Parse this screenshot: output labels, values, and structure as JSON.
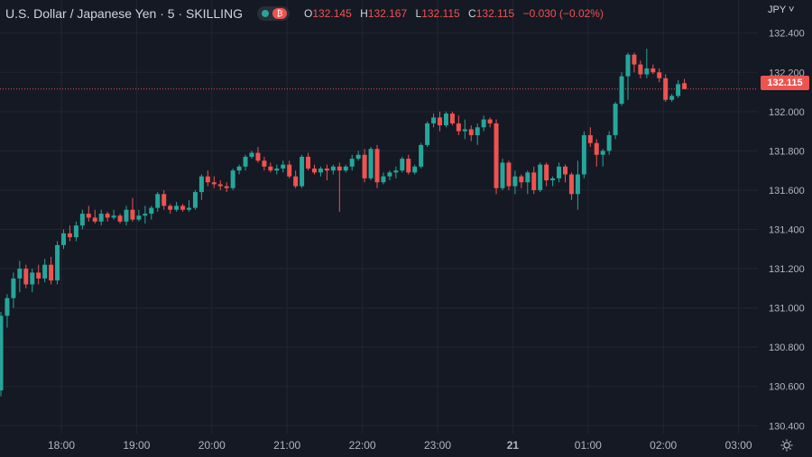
{
  "header": {
    "title": "U.S. Dollar / Japanese Yen · 5 · SKILLING",
    "open_label": "O",
    "open": "132.145",
    "high_label": "H",
    "high": "132.167",
    "low_label": "L",
    "low": "132.115",
    "close_label": "C",
    "close": "132.115",
    "change": "−0.030 (−0.02%)",
    "toggle_icon": "chart-toggle-icon"
  },
  "price_axis": {
    "currency": "JPY ˅",
    "last_price": "132.115"
  },
  "colors": {
    "up": "#26a69a",
    "down": "#ef5350",
    "background": "#151924",
    "grid": "#232632",
    "text": "#b2b5be"
  },
  "chart_data": {
    "type": "candlestick",
    "y_ticks": [
      "130.400",
      "130.600",
      "130.800",
      "131.000",
      "131.200",
      "131.400",
      "131.600",
      "131.800",
      "132.000",
      "132.200",
      "132.400"
    ],
    "x_ticks": [
      {
        "label": "18:00",
        "t": "17:55"
      },
      {
        "label": "19:00",
        "t": "18:55"
      },
      {
        "label": "20:00",
        "t": "19:55"
      },
      {
        "label": "21:00",
        "t": "20:55"
      },
      {
        "label": "22:00",
        "t": "21:55"
      },
      {
        "label": "23:00",
        "t": "22:55"
      },
      {
        "label": "21",
        "t": "23:55"
      },
      {
        "label": "01:00",
        "t": "00:55"
      },
      {
        "label": "02:00",
        "t": "01:55"
      },
      {
        "label": "03:00",
        "t": "02:55"
      }
    ],
    "ylim": [
      130.36,
      132.44
    ],
    "last_price": 132.115,
    "candles": [
      [
        130.58,
        130.98,
        130.55,
        130.96
      ],
      [
        130.96,
        131.07,
        130.9,
        131.05
      ],
      [
        131.05,
        131.18,
        131.0,
        131.15
      ],
      [
        131.15,
        131.24,
        131.08,
        131.2
      ],
      [
        131.2,
        131.22,
        131.1,
        131.12
      ],
      [
        131.12,
        131.2,
        131.08,
        131.18
      ],
      [
        131.18,
        131.22,
        131.12,
        131.15
      ],
      [
        131.15,
        131.25,
        131.13,
        131.22
      ],
      [
        131.22,
        131.26,
        131.12,
        131.14
      ],
      [
        131.14,
        131.34,
        131.12,
        131.32
      ],
      [
        131.32,
        131.4,
        131.3,
        131.38
      ],
      [
        131.38,
        131.42,
        131.34,
        131.36
      ],
      [
        131.36,
        131.44,
        131.34,
        131.42
      ],
      [
        131.42,
        131.5,
        131.4,
        131.48
      ],
      [
        131.48,
        131.52,
        131.44,
        131.46
      ],
      [
        131.46,
        131.5,
        131.43,
        131.44
      ],
      [
        131.44,
        131.5,
        131.42,
        131.48
      ],
      [
        131.48,
        131.49,
        131.44,
        131.46
      ],
      [
        131.46,
        131.5,
        131.45,
        131.47
      ],
      [
        131.47,
        131.48,
        131.43,
        131.44
      ],
      [
        131.44,
        131.52,
        131.42,
        131.5
      ],
      [
        131.5,
        131.56,
        131.44,
        131.45
      ],
      [
        131.45,
        131.5,
        131.44,
        131.47
      ],
      [
        131.47,
        131.52,
        131.43,
        131.48
      ],
      [
        131.48,
        131.52,
        131.45,
        131.51
      ],
      [
        131.51,
        131.59,
        131.49,
        131.58
      ],
      [
        131.58,
        131.6,
        131.5,
        131.52
      ],
      [
        131.52,
        131.53,
        131.48,
        131.5
      ],
      [
        131.5,
        131.54,
        131.49,
        131.52
      ],
      [
        131.52,
        131.53,
        131.49,
        131.5
      ],
      [
        131.5,
        131.55,
        131.49,
        131.51
      ],
      [
        131.51,
        131.6,
        131.5,
        131.59
      ],
      [
        131.59,
        131.68,
        131.55,
        131.67
      ],
      [
        131.67,
        131.7,
        131.62,
        131.64
      ],
      [
        131.64,
        131.67,
        131.61,
        131.63
      ],
      [
        131.63,
        131.65,
        131.6,
        131.62
      ],
      [
        131.62,
        131.64,
        131.59,
        131.61
      ],
      [
        131.61,
        131.71,
        131.6,
        131.7
      ],
      [
        131.7,
        131.73,
        131.68,
        131.72
      ],
      [
        131.72,
        131.78,
        131.7,
        131.77
      ],
      [
        131.77,
        131.8,
        131.76,
        131.79
      ],
      [
        131.79,
        131.82,
        131.74,
        131.75
      ],
      [
        131.75,
        131.77,
        131.7,
        131.72
      ],
      [
        131.72,
        131.74,
        131.69,
        131.7
      ],
      [
        131.7,
        131.73,
        131.68,
        131.71
      ],
      [
        131.71,
        131.75,
        131.69,
        131.73
      ],
      [
        131.73,
        131.75,
        131.66,
        131.67
      ],
      [
        131.67,
        131.7,
        131.61,
        131.62
      ],
      [
        131.62,
        131.78,
        131.61,
        131.77
      ],
      [
        131.77,
        131.79,
        131.7,
        131.71
      ],
      [
        131.71,
        131.73,
        131.68,
        131.69
      ],
      [
        131.69,
        131.72,
        131.67,
        131.71
      ],
      [
        131.71,
        131.73,
        131.65,
        131.7
      ],
      [
        131.7,
        131.73,
        131.68,
        131.72
      ],
      [
        131.72,
        131.74,
        131.49,
        131.7
      ],
      [
        131.7,
        131.73,
        131.69,
        131.72
      ],
      [
        131.72,
        131.78,
        131.7,
        131.76
      ],
      [
        131.76,
        131.8,
        131.75,
        131.78
      ],
      [
        131.78,
        131.81,
        131.64,
        131.66
      ],
      [
        131.66,
        131.82,
        131.65,
        131.81
      ],
      [
        131.81,
        131.83,
        131.61,
        131.64
      ],
      [
        131.64,
        131.69,
        131.63,
        131.67
      ],
      [
        131.67,
        131.7,
        131.65,
        131.69
      ],
      [
        131.69,
        131.72,
        131.66,
        131.7
      ],
      [
        131.7,
        131.77,
        131.69,
        131.76
      ],
      [
        131.76,
        131.78,
        131.68,
        131.69
      ],
      [
        131.69,
        131.73,
        131.68,
        131.72
      ],
      [
        131.72,
        131.84,
        131.71,
        131.83
      ],
      [
        131.83,
        131.95,
        131.82,
        131.94
      ],
      [
        131.94,
        131.99,
        131.92,
        131.97
      ],
      [
        131.97,
        132.0,
        131.9,
        131.93
      ],
      [
        131.93,
        132.0,
        131.92,
        131.99
      ],
      [
        131.99,
        132.0,
        131.93,
        131.94
      ],
      [
        131.94,
        131.98,
        131.88,
        131.9
      ],
      [
        131.9,
        131.96,
        131.86,
        131.91
      ],
      [
        131.91,
        131.93,
        131.85,
        131.88
      ],
      [
        131.88,
        131.94,
        131.83,
        131.92
      ],
      [
        131.92,
        131.98,
        131.9,
        131.96
      ],
      [
        131.96,
        131.97,
        131.92,
        131.94
      ],
      [
        131.94,
        131.96,
        131.58,
        131.61
      ],
      [
        131.61,
        131.76,
        131.6,
        131.74
      ],
      [
        131.74,
        131.75,
        131.6,
        131.62
      ],
      [
        131.62,
        131.7,
        131.58,
        131.67
      ],
      [
        131.67,
        131.68,
        131.61,
        131.64
      ],
      [
        131.64,
        131.7,
        131.58,
        131.69
      ],
      [
        131.69,
        131.72,
        131.58,
        131.6
      ],
      [
        131.6,
        131.74,
        131.59,
        131.73
      ],
      [
        131.73,
        131.74,
        131.62,
        131.65
      ],
      [
        131.65,
        131.67,
        131.62,
        131.66
      ],
      [
        131.66,
        131.74,
        131.64,
        131.72
      ],
      [
        131.72,
        131.73,
        131.64,
        131.68
      ],
      [
        131.68,
        131.69,
        131.55,
        131.58
      ],
      [
        131.58,
        131.75,
        131.5,
        131.68
      ],
      [
        131.68,
        131.9,
        131.66,
        131.88
      ],
      [
        131.88,
        131.92,
        131.82,
        131.84
      ],
      [
        131.84,
        131.86,
        131.72,
        131.78
      ],
      [
        131.78,
        131.81,
        131.72,
        131.8
      ],
      [
        131.8,
        131.9,
        131.78,
        131.88
      ],
      [
        131.88,
        132.05,
        131.86,
        132.04
      ],
      [
        132.04,
        132.2,
        132.03,
        132.18
      ],
      [
        132.18,
        132.3,
        132.06,
        132.29
      ],
      [
        132.29,
        132.3,
        132.2,
        132.24
      ],
      [
        132.24,
        132.26,
        132.17,
        132.19
      ],
      [
        132.19,
        132.32,
        132.17,
        132.22
      ],
      [
        132.22,
        132.24,
        132.19,
        132.2
      ],
      [
        132.2,
        132.22,
        132.15,
        132.17
      ],
      [
        132.17,
        132.19,
        132.05,
        132.06
      ],
      [
        132.06,
        132.09,
        132.05,
        132.08
      ],
      [
        132.08,
        132.16,
        132.07,
        132.14
      ],
      [
        132.145,
        132.167,
        132.115,
        132.115
      ]
    ]
  }
}
